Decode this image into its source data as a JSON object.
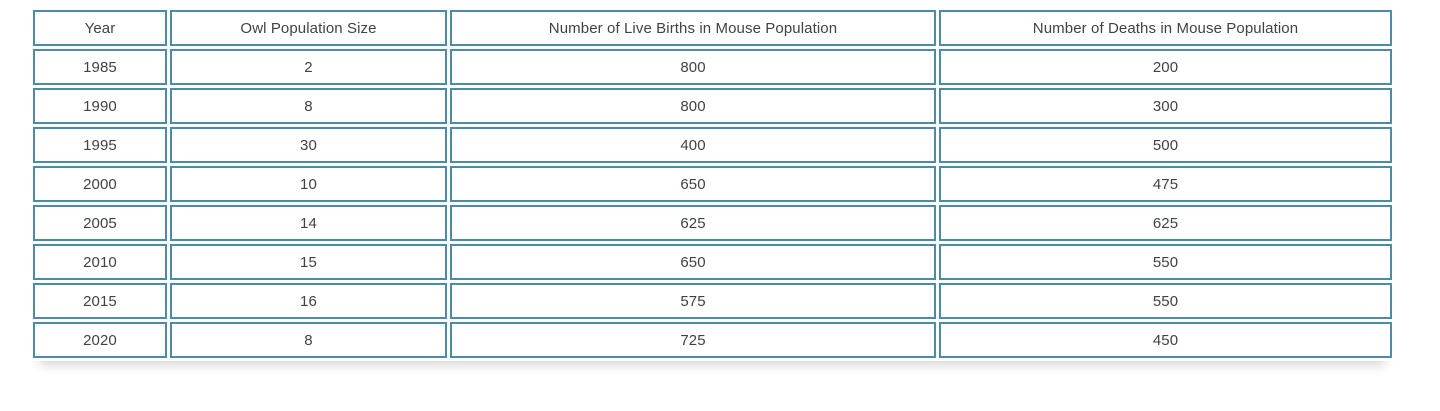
{
  "colors": {
    "table_border": "#4d8aa6",
    "cell_text": "#3f4346",
    "background": "#ffffff"
  },
  "chart_data": {
    "type": "table",
    "title": "",
    "columns": [
      "Year",
      "Owl Population Size",
      "Number of Live Births in Mouse Population",
      "Number of Deaths in Mouse Population"
    ],
    "rows": [
      [
        "1985",
        "2",
        "800",
        "200"
      ],
      [
        "1990",
        "8",
        "800",
        "300"
      ],
      [
        "1995",
        "30",
        "400",
        "500"
      ],
      [
        "2000",
        "10",
        "650",
        "475"
      ],
      [
        "2005",
        "14",
        "625",
        "625"
      ],
      [
        "2010",
        "15",
        "650",
        "550"
      ],
      [
        "2015",
        "16",
        "575",
        "550"
      ],
      [
        "2020",
        "8",
        "725",
        "450"
      ]
    ]
  }
}
